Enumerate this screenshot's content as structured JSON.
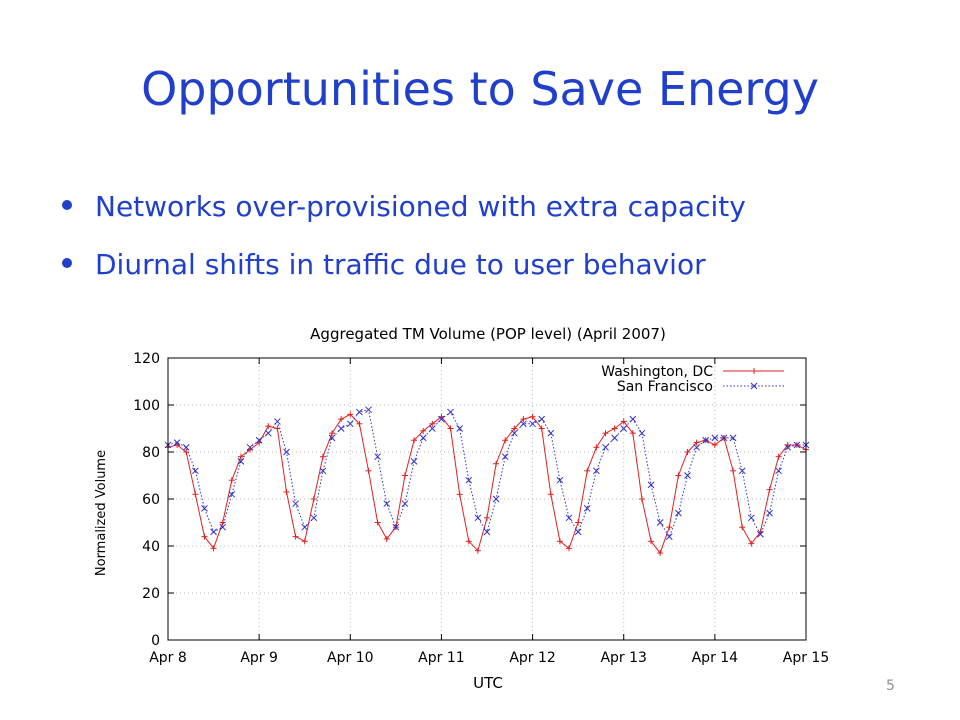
{
  "slide": {
    "title": "Opportunities to Save Energy",
    "bullets": [
      "Networks over-provisioned with extra capacity",
      "Diurnal shifts in traffic due to user behavior"
    ],
    "page_number": "5"
  },
  "chart_data": {
    "type": "line",
    "title": "Aggregated TM Volume (POP level) (April 2007)",
    "xlabel": "UTC",
    "ylabel": "Normalized Volume",
    "ylim": [
      0,
      120
    ],
    "yticks": [
      0,
      20,
      40,
      60,
      80,
      100,
      120
    ],
    "xlim": [
      8,
      15
    ],
    "xticks": [
      {
        "value": 8,
        "label": "Apr 8"
      },
      {
        "value": 9,
        "label": "Apr 9"
      },
      {
        "value": 10,
        "label": "Apr 10"
      },
      {
        "value": 11,
        "label": "Apr 11"
      },
      {
        "value": 12,
        "label": "Apr 12"
      },
      {
        "value": 13,
        "label": "Apr 13"
      },
      {
        "value": 14,
        "label": "Apr 14"
      },
      {
        "value": 15,
        "label": "Apr 15"
      }
    ],
    "grid": true,
    "legend": "top-right",
    "series": [
      {
        "name": "Washington, DC",
        "marker": "+",
        "line": "solid",
        "color": "#e02020",
        "x": [
          8.0,
          8.1,
          8.2,
          8.3,
          8.4,
          8.5,
          8.6,
          8.7,
          8.8,
          8.9,
          9.0,
          9.1,
          9.2,
          9.3,
          9.4,
          9.5,
          9.6,
          9.7,
          9.8,
          9.9,
          10.0,
          10.1,
          10.2,
          10.3,
          10.4,
          10.5,
          10.6,
          10.7,
          10.8,
          10.9,
          11.0,
          11.1,
          11.2,
          11.3,
          11.4,
          11.5,
          11.6,
          11.7,
          11.8,
          11.9,
          12.0,
          12.1,
          12.2,
          12.3,
          12.4,
          12.5,
          12.6,
          12.7,
          12.8,
          12.9,
          13.0,
          13.1,
          13.2,
          13.3,
          13.4,
          13.5,
          13.6,
          13.7,
          13.8,
          13.9,
          14.0,
          14.1,
          14.2,
          14.3,
          14.4,
          14.5,
          14.6,
          14.7,
          14.8,
          14.9,
          15.0
        ],
        "y": [
          82,
          83,
          80,
          62,
          44,
          39,
          50,
          68,
          78,
          81,
          84,
          91,
          90,
          63,
          44,
          42,
          60,
          78,
          88,
          94,
          96,
          92,
          72,
          50,
          43,
          48,
          70,
          85,
          89,
          92,
          95,
          90,
          62,
          42,
          38,
          52,
          75,
          85,
          90,
          94,
          95,
          90,
          62,
          42,
          39,
          50,
          72,
          82,
          88,
          90,
          93,
          88,
          60,
          42,
          37,
          48,
          70,
          80,
          84,
          85,
          83,
          86,
          72,
          48,
          41,
          46,
          64,
          78,
          83,
          83,
          81
        ]
      },
      {
        "name": "San Francisco",
        "marker": "x",
        "line": "dotted",
        "color": "#2f30c8",
        "x": [
          8.0,
          8.1,
          8.2,
          8.3,
          8.4,
          8.5,
          8.6,
          8.7,
          8.8,
          8.9,
          9.0,
          9.1,
          9.2,
          9.3,
          9.4,
          9.5,
          9.6,
          9.7,
          9.8,
          9.9,
          10.0,
          10.1,
          10.2,
          10.3,
          10.4,
          10.5,
          10.6,
          10.7,
          10.8,
          10.9,
          11.0,
          11.1,
          11.2,
          11.3,
          11.4,
          11.5,
          11.6,
          11.7,
          11.8,
          11.9,
          12.0,
          12.1,
          12.2,
          12.3,
          12.4,
          12.5,
          12.6,
          12.7,
          12.8,
          12.9,
          13.0,
          13.1,
          13.2,
          13.3,
          13.4,
          13.5,
          13.6,
          13.7,
          13.8,
          13.9,
          14.0,
          14.1,
          14.2,
          14.3,
          14.4,
          14.5,
          14.6,
          14.7,
          14.8,
          14.9,
          15.0
        ],
        "y": [
          83,
          84,
          82,
          72,
          56,
          46,
          48,
          62,
          76,
          82,
          85,
          88,
          93,
          80,
          58,
          48,
          52,
          72,
          86,
          90,
          92,
          97,
          98,
          78,
          58,
          48,
          58,
          76,
          86,
          90,
          94,
          97,
          90,
          68,
          52,
          46,
          60,
          78,
          88,
          92,
          92,
          94,
          88,
          68,
          52,
          46,
          56,
          72,
          82,
          86,
          90,
          94,
          88,
          66,
          50,
          44,
          54,
          70,
          82,
          85,
          86,
          86,
          86,
          72,
          52,
          45,
          54,
          72,
          82,
          83,
          83
        ]
      }
    ]
  }
}
